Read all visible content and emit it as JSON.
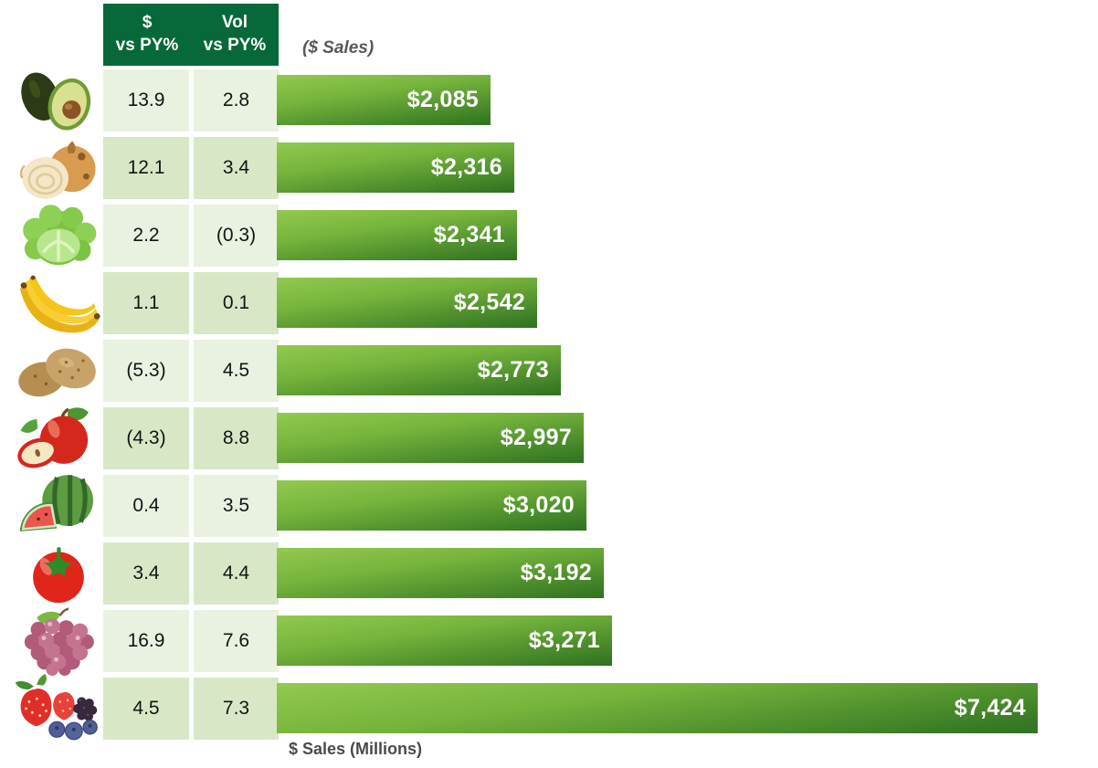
{
  "table": {
    "columns": [
      {
        "line1": "$",
        "line2": "vs PY%"
      },
      {
        "line1": "Vol",
        "line2": "vs PY%"
      }
    ]
  },
  "chart": {
    "title_note": "($ Sales)",
    "xlabel": "$ Sales (Millions)"
  },
  "colors": {
    "header_bg": "#07683a",
    "row_light": "#e9f1e0",
    "row_dark": "#d8e8c6",
    "bar_top": "#93c94f",
    "bar_mid": "#76b43c",
    "bar_bottom": "#2e7120",
    "bar_label": "#ffffff",
    "table_text": "#141414",
    "note_color": "#595959",
    "axis_label_color": "#4a4a4a"
  },
  "rows": [
    {
      "item": "avocado",
      "icon": "avocado-image",
      "dollar_vs_py": "13.9",
      "vol_vs_py": "2.8",
      "sales_millions": 2085,
      "sales_label": "$2,085"
    },
    {
      "item": "onion",
      "icon": "onion-image",
      "dollar_vs_py": "12.1",
      "vol_vs_py": "3.4",
      "sales_millions": 2316,
      "sales_label": "$2,316"
    },
    {
      "item": "lettuce",
      "icon": "lettuce-image",
      "dollar_vs_py": "2.2",
      "vol_vs_py": "(0.3)",
      "sales_millions": 2341,
      "sales_label": "$2,341"
    },
    {
      "item": "bananas",
      "icon": "banana-image",
      "dollar_vs_py": "1.1",
      "vol_vs_py": "0.1",
      "sales_millions": 2542,
      "sales_label": "$2,542"
    },
    {
      "item": "potatoes",
      "icon": "potato-image",
      "dollar_vs_py": "(5.3)",
      "vol_vs_py": "4.5",
      "sales_millions": 2773,
      "sales_label": "$2,773"
    },
    {
      "item": "apples",
      "icon": "apple-image",
      "dollar_vs_py": "(4.3)",
      "vol_vs_py": "8.8",
      "sales_millions": 2997,
      "sales_label": "$2,997"
    },
    {
      "item": "watermelon",
      "icon": "watermelon-image",
      "dollar_vs_py": "0.4",
      "vol_vs_py": "3.5",
      "sales_millions": 3020,
      "sales_label": "$3,020"
    },
    {
      "item": "tomato",
      "icon": "tomato-image",
      "dollar_vs_py": "3.4",
      "vol_vs_py": "4.4",
      "sales_millions": 3192,
      "sales_label": "$3,192"
    },
    {
      "item": "grapes",
      "icon": "grapes-image",
      "dollar_vs_py": "16.9",
      "vol_vs_py": "7.6",
      "sales_millions": 3271,
      "sales_label": "$3,271"
    },
    {
      "item": "berries",
      "icon": "berries-image",
      "dollar_vs_py": "4.5",
      "vol_vs_py": "7.3",
      "sales_millions": 7424,
      "sales_label": "$7,424"
    }
  ],
  "chart_data": {
    "type": "bar",
    "orientation": "horizontal",
    "title": "($ Sales)",
    "xlabel": "$ Sales (Millions)",
    "categories": [
      "avocado",
      "onion",
      "lettuce",
      "bananas",
      "potatoes",
      "apples",
      "watermelon",
      "tomato",
      "grapes",
      "berries"
    ],
    "series": [
      {
        "name": "$ vs PY%",
        "values": [
          13.9,
          12.1,
          2.2,
          1.1,
          -5.3,
          -4.3,
          0.4,
          3.4,
          16.9,
          4.5
        ]
      },
      {
        "name": "Vol vs PY%",
        "values": [
          2.8,
          3.4,
          -0.3,
          0.1,
          4.5,
          8.8,
          3.5,
          4.4,
          7.6,
          7.3
        ]
      },
      {
        "name": "$ Sales (Millions)",
        "values": [
          2085,
          2316,
          2341,
          2542,
          2773,
          2997,
          3020,
          3192,
          3271,
          7424
        ]
      }
    ],
    "bar_labels": [
      "$2,085",
      "$2,316",
      "$2,341",
      "$2,542",
      "$2,773",
      "$2,997",
      "$3,020",
      "$3,192",
      "$3,271",
      "$7,424"
    ],
    "negative_format": "parentheses",
    "legend": "none",
    "grid": false
  }
}
